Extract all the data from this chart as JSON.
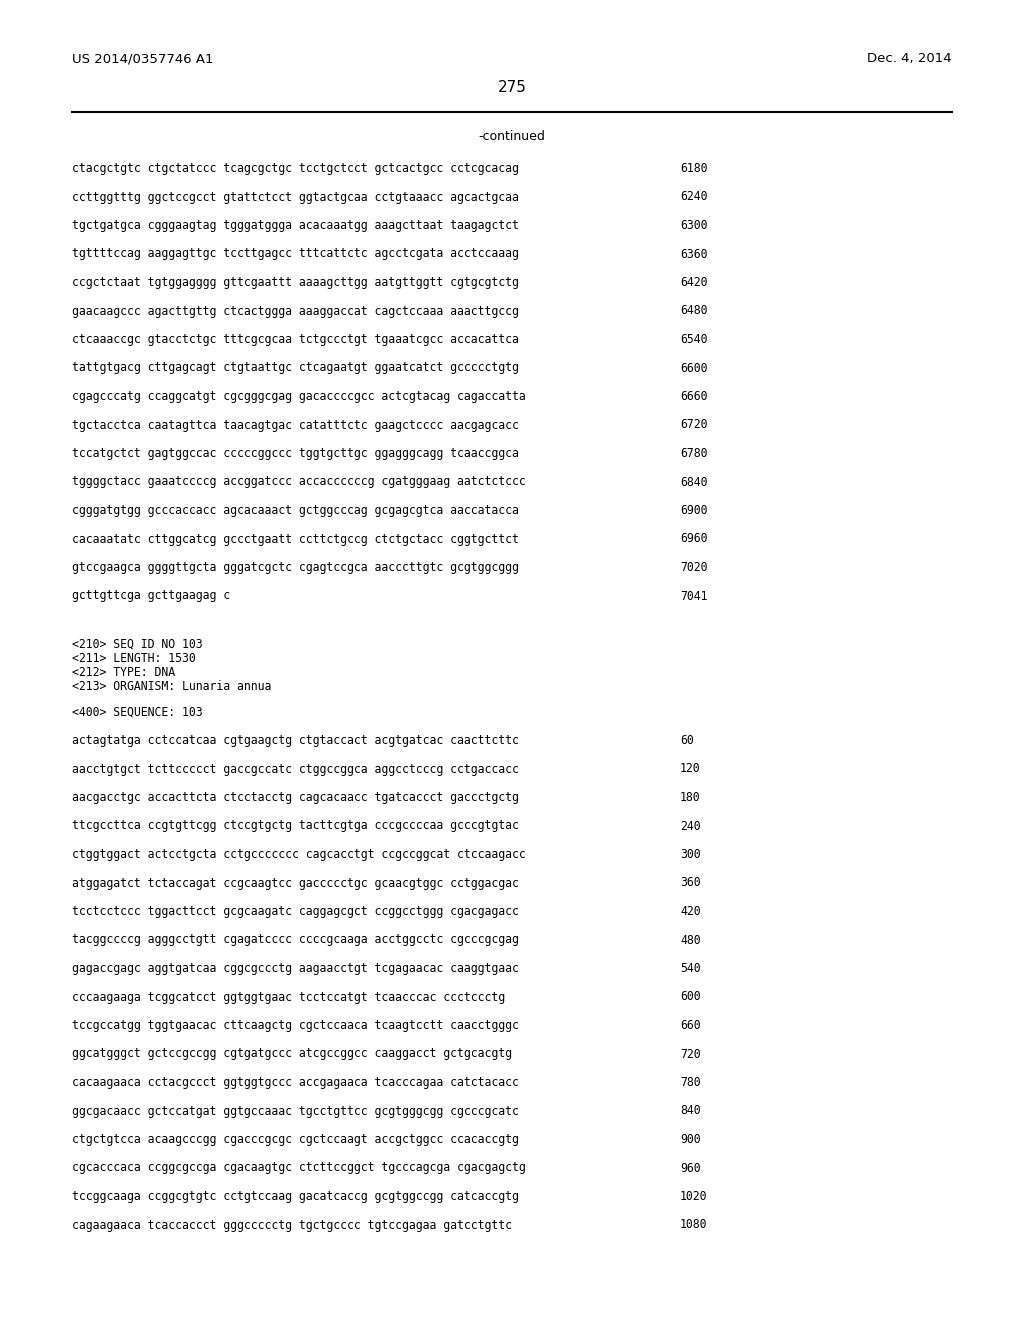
{
  "header_left": "US 2014/0357746 A1",
  "header_right": "Dec. 4, 2014",
  "page_number": "275",
  "continued_text": "-continued",
  "background_color": "#ffffff",
  "text_color": "#000000",
  "font_size": 8.5,
  "mono_font_size": 8.3,
  "sequence_lines_top": [
    [
      "ctacgctgtc ctgctatccc tcagcgctgc tcctgctcct gctcactgcc cctcgcacag",
      "6180"
    ],
    [
      "ccttggtttg ggctccgcct gtattctcct ggtactgcaa cctgtaaacc agcactgcaa",
      "6240"
    ],
    [
      "tgctgatgca cgggaagtag tgggatggga acacaaatgg aaagcttaat taagagctct",
      "6300"
    ],
    [
      "tgttttccag aaggagttgc tccttgagcc tttcattctc agcctcgata acctccaaag",
      "6360"
    ],
    [
      "ccgctctaat tgtggagggg gttcgaattt aaaagcttgg aatgttggtt cgtgcgtctg",
      "6420"
    ],
    [
      "gaacaagccc agacttgttg ctcactggga aaaggaccat cagctccaaa aaacttgccg",
      "6480"
    ],
    [
      "ctcaaaccgc gtacctctgc tttcgcgcaa tctgccctgt tgaaatcgcc accacattca",
      "6540"
    ],
    [
      "tattgtgacg cttgagcagt ctgtaattgc ctcagaatgt ggaatcatct gccccctgtg",
      "6600"
    ],
    [
      "cgagcccatg ccaggcatgt cgcgggcgag gacaccccgcc actcgtacag cagaccatta",
      "6660"
    ],
    [
      "tgctacctca caatagttca taacagtgac catatttctc gaagctcccc aacgagcacc",
      "6720"
    ],
    [
      "tccatgctct gagtggccac cccccggccc tggtgcttgc ggagggcagg tcaaccggca",
      "6780"
    ],
    [
      "tggggctacc gaaatccccg accggatccc accaccccccg cgatgggaag aatctctccc",
      "6840"
    ],
    [
      "cgggatgtgg gcccaccacc agcacaaact gctggcccag gcgagcgtca aaccatacca",
      "6900"
    ],
    [
      "cacaaatatc cttggcatcg gccctgaatt ccttctgccg ctctgctacc cggtgcttct",
      "6960"
    ],
    [
      "gtccgaagca ggggttgcta gggatcgctc cgagtccgca aacccttgtc gcgtggcggg",
      "7020"
    ],
    [
      "gcttgttcga gcttgaagag c",
      "7041"
    ]
  ],
  "metadata_lines": [
    "<210> SEQ ID NO 103",
    "<211> LENGTH: 1530",
    "<212> TYPE: DNA",
    "<213> ORGANISM: Lunaria annua"
  ],
  "sequence_header": "<400> SEQUENCE: 103",
  "sequence_lines_bottom": [
    [
      "actagtatga cctccatcaa cgtgaagctg ctgtaccact acgtgatcac caacttcttc",
      "60"
    ],
    [
      "aacctgtgct tcttccccct gaccgccatc ctggccggca aggcctcccg cctgaccacc",
      "120"
    ],
    [
      "aacgacctgc accacttcta ctcctacctg cagcacaacc tgatcaccct gaccctgctg",
      "180"
    ],
    [
      "ttcgccttca ccgtgttcgg ctccgtgctg tacttcgtga cccgccccaa gcccgtgtac",
      "240"
    ],
    [
      "ctggtggact actcctgcta cctgccccccc cagcacctgt ccgccggcat ctccaagacc",
      "300"
    ],
    [
      "atggagatct tctaccagat ccgcaagtcc gaccccctgc gcaacgtggc cctggacgac",
      "360"
    ],
    [
      "tcctcctccc tggacttcct gcgcaagatc caggagcgct ccggcctggg cgacgagacc",
      "420"
    ],
    [
      "tacggccccg agggcctgtt cgagatcccc ccccgcaaga acctggcctc cgcccgcgag",
      "480"
    ],
    [
      "gagaccgagc aggtgatcaa cggcgccctg aagaacctgt tcgagaacac caaggtgaac",
      "540"
    ],
    [
      "cccaagaaga tcggcatcct ggtggtgaac tcctccatgt tcaacccac ccctccctg",
      "600"
    ],
    [
      "tccgccatgg tggtgaacac cttcaagctg cgctccaaca tcaagtcctt caacctgggc",
      "660"
    ],
    [
      "ggcatgggct gctccgccgg cgtgatgccc atcgccggcc caaggacct gctgcacgtg",
      "720"
    ],
    [
      "cacaagaaca cctacgccct ggtggtgccc accgagaaca tcacccagaa catctacacc",
      "780"
    ],
    [
      "ggcgacaacc gctccatgat ggtgccaaac tgcctgttcc gcgtgggcgg cgcccgcatc",
      "840"
    ],
    [
      "ctgctgtcca acaagcccgg cgacccgcgc cgctccaagt accgctggcc ccacaccgtg",
      "900"
    ],
    [
      "cgcacccaca ccggcgccga cgacaagtgc ctcttccggct tgcccagcga cgacgagctg",
      "960"
    ],
    [
      "tccggcaaga ccggcgtgtc cctgtccaag gacatcaccg gcgtggccgg catcaccgtg",
      "1020"
    ],
    [
      "cagaagaaca tcaccaccct gggccccctg tgctgcccc tgtccgagaa gatcctgttc",
      "1080"
    ]
  ]
}
